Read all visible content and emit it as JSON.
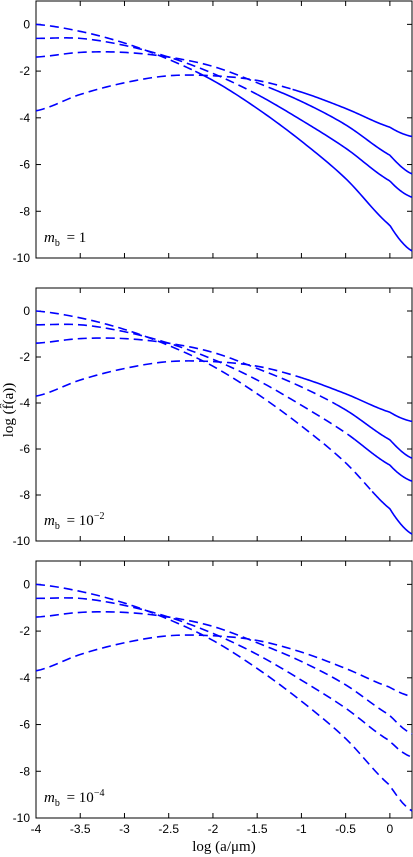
{
  "chart_data": [
    {
      "type": "line",
      "panel_label": "m_b = 1",
      "label_base": "m",
      "label_sub": "b",
      "label_rhs": "= 1",
      "label_exp": "",
      "xlim": [
        -4,
        0.25
      ],
      "ylim": [
        -10,
        1
      ],
      "solid_from": [
        -2.2,
        -1.5,
        -1.3,
        -1.1
      ],
      "series": [
        {
          "x": [
            -4,
            -3.5,
            -3,
            -2.5,
            -2,
            -1.5,
            -1,
            -0.5,
            0,
            0.25
          ],
          "y": [
            0.0,
            -0.3,
            -0.8,
            -1.5,
            -2.4,
            -3.6,
            -5.0,
            -6.6,
            -8.6,
            -9.7
          ]
        },
        {
          "x": [
            -4,
            -3.5,
            -3,
            -2.5,
            -2,
            -1.5,
            -1,
            -0.5,
            0,
            0.25
          ],
          "y": [
            -0.6,
            -0.6,
            -0.9,
            -1.4,
            -2.1,
            -3.0,
            -4.1,
            -5.3,
            -6.7,
            -7.4
          ]
        },
        {
          "x": [
            -4,
            -3.5,
            -3,
            -2.5,
            -2,
            -1.5,
            -1,
            -0.5,
            0,
            0.25
          ],
          "y": [
            -1.4,
            -1.2,
            -1.2,
            -1.4,
            -1.8,
            -2.5,
            -3.3,
            -4.3,
            -5.6,
            -6.4
          ]
        },
        {
          "x": [
            -4,
            -3.5,
            -3,
            -2.5,
            -2,
            -1.5,
            -1,
            -0.5,
            0,
            0.25
          ],
          "y": [
            -3.7,
            -3.0,
            -2.5,
            -2.2,
            -2.2,
            -2.4,
            -2.9,
            -3.6,
            -4.4,
            -4.8
          ]
        }
      ]
    },
    {
      "type": "line",
      "panel_label": "m_b = 10^-2",
      "label_base": "m",
      "label_sub": "b",
      "label_rhs": "= 10",
      "label_exp": "−2",
      "xlim": [
        -4,
        0.25
      ],
      "ylim": [
        -10,
        1
      ],
      "solid_from": [
        -0.2,
        -0.4,
        -0.6,
        -1.0
      ],
      "series": [
        {
          "x": [
            -4,
            -3.5,
            -3,
            -2.5,
            -2,
            -1.5,
            -1,
            -0.5,
            0,
            0.25
          ],
          "y": [
            0.0,
            -0.3,
            -0.8,
            -1.5,
            -2.4,
            -3.6,
            -5.0,
            -6.6,
            -8.6,
            -9.7
          ]
        },
        {
          "x": [
            -4,
            -3.5,
            -3,
            -2.5,
            -2,
            -1.5,
            -1,
            -0.5,
            0,
            0.25
          ],
          "y": [
            -0.6,
            -0.6,
            -0.9,
            -1.4,
            -2.1,
            -3.0,
            -4.1,
            -5.3,
            -6.7,
            -7.4
          ]
        },
        {
          "x": [
            -4,
            -3.5,
            -3,
            -2.5,
            -2,
            -1.5,
            -1,
            -0.5,
            0,
            0.25
          ],
          "y": [
            -1.4,
            -1.2,
            -1.2,
            -1.4,
            -1.8,
            -2.5,
            -3.3,
            -4.3,
            -5.6,
            -6.4
          ]
        },
        {
          "x": [
            -4,
            -3.5,
            -3,
            -2.5,
            -2,
            -1.5,
            -1,
            -0.5,
            0,
            0.25
          ],
          "y": [
            -3.7,
            -3.0,
            -2.5,
            -2.2,
            -2.2,
            -2.4,
            -2.9,
            -3.6,
            -4.4,
            -4.8
          ]
        }
      ]
    },
    {
      "type": "line",
      "panel_label": "m_b = 10^-4",
      "label_base": "m",
      "label_sub": "b",
      "label_rhs": "= 10",
      "label_exp": "−4",
      "xlim": [
        -4,
        0.25
      ],
      "ylim": [
        -10,
        1
      ],
      "xlabel": "log (a/μm)",
      "xticks": [
        "-4",
        "-3.5",
        "-3",
        "-2.5",
        "-2",
        "-1.5",
        "-1",
        "-0.5",
        "0"
      ],
      "solid_from": [
        1,
        1,
        1,
        1
      ],
      "series": [
        {
          "x": [
            -4,
            -3.5,
            -3,
            -2.5,
            -2,
            -1.5,
            -1,
            -0.5,
            0,
            0.25
          ],
          "y": [
            0.0,
            -0.3,
            -0.8,
            -1.5,
            -2.4,
            -3.6,
            -5.0,
            -6.6,
            -8.6,
            -9.7
          ]
        },
        {
          "x": [
            -4,
            -3.5,
            -3,
            -2.5,
            -2,
            -1.5,
            -1,
            -0.5,
            0,
            0.25
          ],
          "y": [
            -0.6,
            -0.6,
            -0.9,
            -1.4,
            -2.1,
            -3.0,
            -4.1,
            -5.3,
            -6.7,
            -7.4
          ]
        },
        {
          "x": [
            -4,
            -3.5,
            -3,
            -2.5,
            -2,
            -1.5,
            -1,
            -0.5,
            0,
            0.25
          ],
          "y": [
            -1.4,
            -1.2,
            -1.2,
            -1.4,
            -1.8,
            -2.5,
            -3.3,
            -4.3,
            -5.6,
            -6.4
          ]
        },
        {
          "x": [
            -4,
            -3.5,
            -3,
            -2.5,
            -2,
            -1.5,
            -1,
            -0.5,
            0,
            0.25
          ],
          "y": [
            -3.7,
            -3.0,
            -2.5,
            -2.2,
            -2.2,
            -2.4,
            -2.9,
            -3.6,
            -4.4,
            -4.8
          ]
        }
      ]
    }
  ],
  "shared": {
    "ylabel": "log (f̂(a))",
    "yticks": [
      "0",
      "-2",
      "-4",
      "-6",
      "-8",
      "-10"
    ],
    "ytick_values": [
      0,
      -2,
      -4,
      -6,
      -8,
      -10
    ],
    "xtick_values": [
      -4,
      -3.5,
      -3,
      -2.5,
      -2,
      -1.5,
      -1,
      -0.5,
      0
    ],
    "line_color": "#0000ff"
  }
}
